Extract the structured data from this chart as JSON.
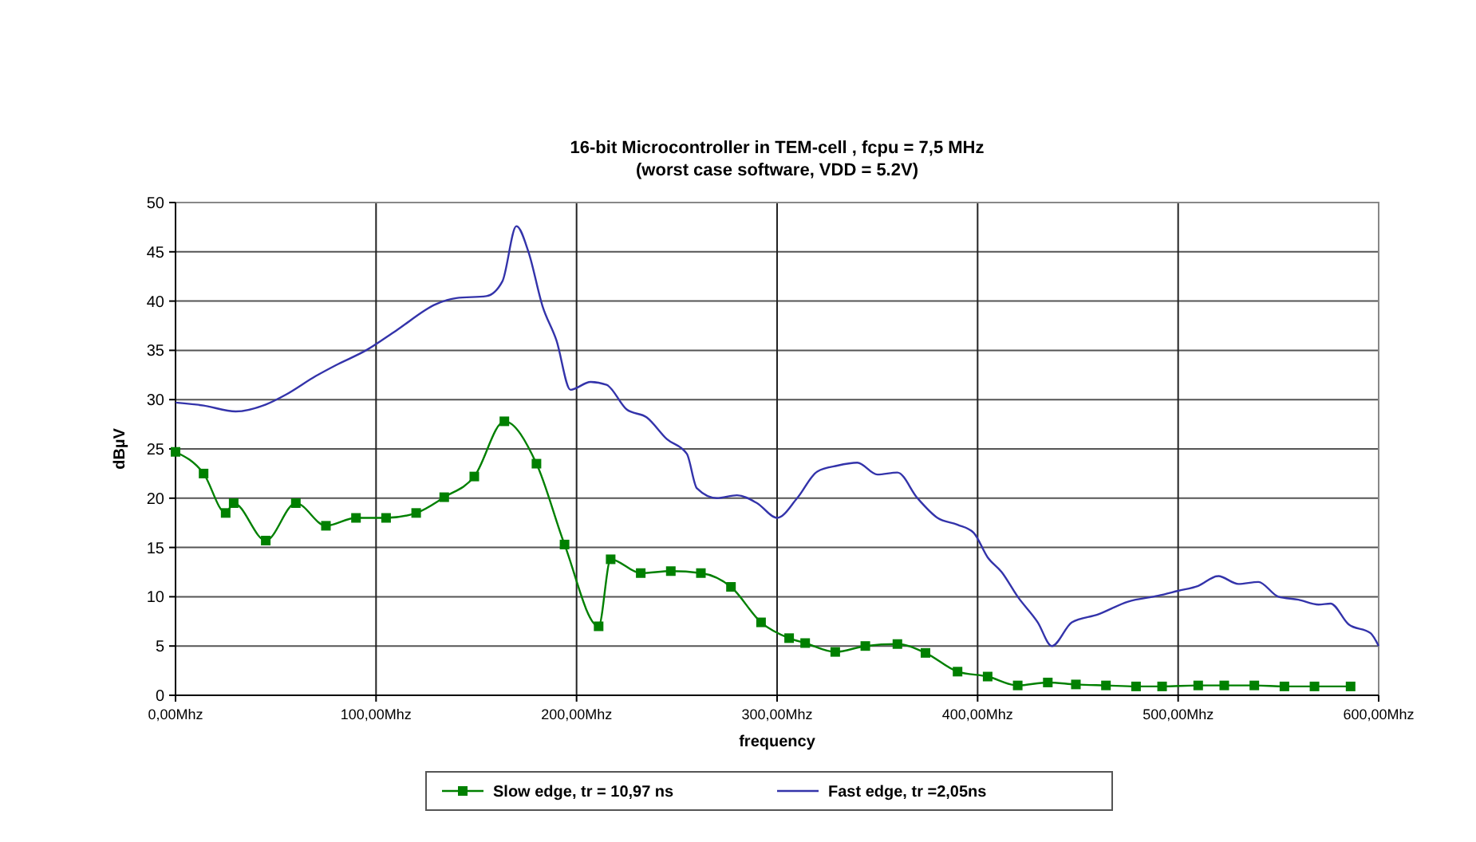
{
  "chart_data": {
    "type": "line",
    "title": "16-bit Microcontroller in TEM-cell , fcpu = 7,5 MHz",
    "subtitle": "(worst case software,  VDD = 5.2V)",
    "xlabel": "frequency",
    "ylabel": "dBµV",
    "xlim": [
      0,
      600
    ],
    "xticks": [
      {
        "value": 0,
        "label": "0,00Mhz"
      },
      {
        "value": 100,
        "label": "100,00Mhz"
      },
      {
        "value": 200,
        "label": "200,00Mhz"
      },
      {
        "value": 300,
        "label": "300,00Mhz"
      },
      {
        "value": 400,
        "label": "400,00Mhz"
      },
      {
        "value": 500,
        "label": "500,00Mhz"
      },
      {
        "value": 600,
        "label": "600,00Mhz"
      }
    ],
    "ylim": [
      0,
      50
    ],
    "yticks": [
      0,
      5,
      10,
      15,
      20,
      25,
      30,
      35,
      40,
      45,
      50
    ],
    "grid": true,
    "legend": "bottom",
    "series": [
      {
        "name": "Slow edge, tr = 10,97 ns",
        "color": "#008000",
        "marker": "square",
        "x": [
          0,
          14,
          25,
          29,
          45,
          60,
          75,
          90,
          105,
          120,
          134,
          149,
          164,
          180,
          194,
          211,
          217,
          232,
          247,
          262,
          277,
          292,
          306,
          314,
          329,
          344,
          360,
          374,
          390,
          405,
          420,
          435,
          449,
          464,
          479,
          492,
          510,
          523,
          538,
          553,
          568,
          586
        ],
        "values": [
          24.7,
          22.5,
          18.5,
          19.5,
          15.7,
          19.5,
          17.2,
          18,
          18,
          18.5,
          20.1,
          22.2,
          27.8,
          23.5,
          15.3,
          7,
          13.8,
          12.4,
          12.6,
          12.4,
          11,
          7.4,
          5.8,
          5.3,
          4.4,
          5,
          5.2,
          4.3,
          2.4,
          1.9,
          1,
          1.3,
          1.1,
          1,
          0.9,
          0.9,
          1,
          1,
          1,
          0.9,
          0.9,
          0.9
        ]
      },
      {
        "name": "Fast edge, tr =2,05ns",
        "color": "#3333aa",
        "marker": "none",
        "x": [
          0,
          14,
          30,
          45,
          55,
          70,
          80,
          95,
          110,
          130,
          140,
          155,
          163,
          170,
          176,
          183,
          190,
          197,
          207,
          215,
          225,
          235,
          245,
          255,
          260,
          270,
          280,
          290,
          300,
          310,
          320,
          330,
          340,
          350,
          360,
          370,
          380,
          390,
          398,
          405,
          412,
          420,
          430,
          437,
          447,
          460,
          475,
          490,
          500,
          510,
          520,
          530,
          540,
          550,
          560,
          570,
          576,
          585,
          596,
          600
        ],
        "values": [
          29.7,
          29.4,
          28.8,
          29.5,
          30.5,
          32.4,
          33.5,
          35,
          37,
          39.7,
          40.3,
          40.5,
          42,
          47.6,
          45,
          39.5,
          36,
          31,
          31.8,
          31.5,
          29,
          28.2,
          26,
          24.5,
          21,
          20,
          20.3,
          19.5,
          18,
          20,
          22.7,
          23.3,
          23.6,
          22.4,
          22.6,
          20,
          18,
          17.3,
          16.5,
          14,
          12.5,
          10,
          7.4,
          5,
          7.4,
          8.2,
          9.5,
          10.1,
          10.6,
          11.1,
          12.1,
          11.3,
          11.5,
          10,
          9.7,
          9.2,
          9.3,
          7.2,
          6.3,
          5
        ]
      }
    ]
  }
}
